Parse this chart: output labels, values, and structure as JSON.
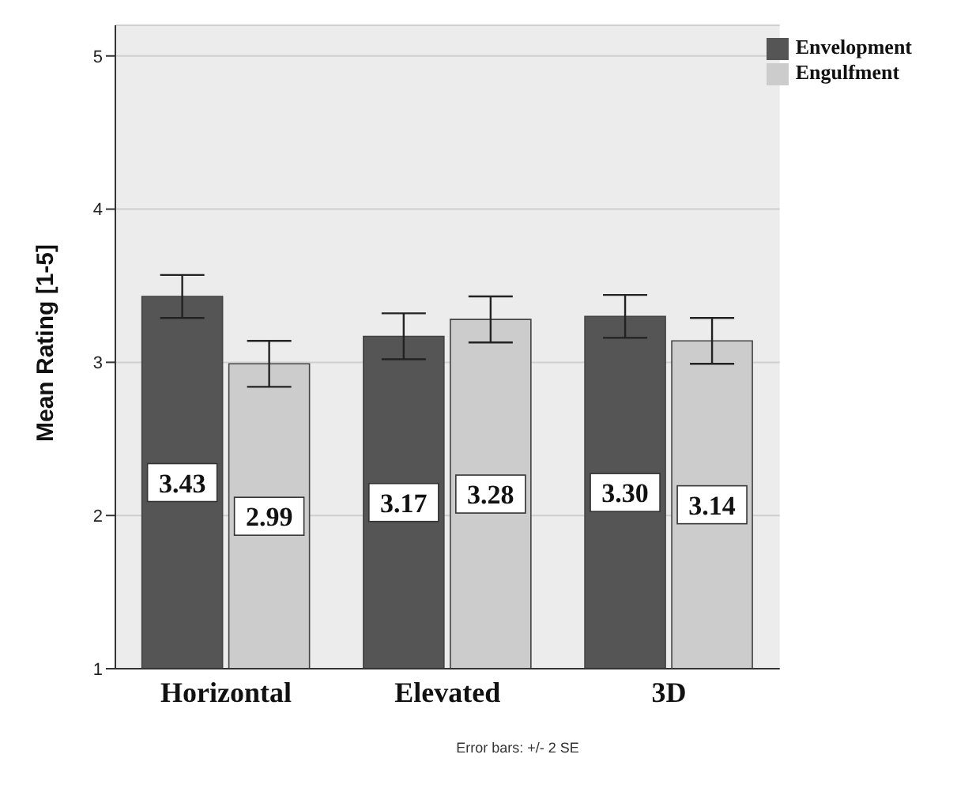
{
  "chart_data": {
    "type": "bar",
    "ylabel": "Mean Rating [1-5]",
    "categories": [
      "Horizontal",
      "Elevated",
      "3D"
    ],
    "series": [
      {
        "name": "Envelopment",
        "color": "#555555",
        "values": [
          3.43,
          3.17,
          3.3
        ],
        "value_labels": [
          "3.43",
          "3.17",
          "3.30"
        ],
        "errors": [
          0.14,
          0.15,
          0.14
        ]
      },
      {
        "name": "Engulfment",
        "color": "#cccccc",
        "values": [
          2.99,
          3.28,
          3.14
        ],
        "value_labels": [
          "2.99",
          "3.28",
          "3.14"
        ],
        "errors": [
          0.15,
          0.15,
          0.15
        ]
      }
    ],
    "ylim": [
      1,
      5.2
    ],
    "yticks": [
      1,
      2,
      3,
      4,
      5
    ],
    "grid": "y",
    "legend": "top right",
    "annotations": [
      "Error bars: +/- 2 SE"
    ]
  }
}
